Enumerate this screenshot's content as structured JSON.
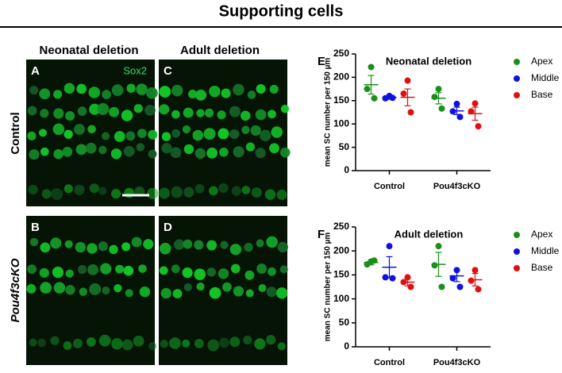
{
  "figure": {
    "title": "Supporting cells",
    "column_titles": [
      "Neonatal deletion",
      "Adult deletion"
    ],
    "row_labels": [
      "Control",
      "Pou4f3cKO"
    ],
    "panels": [
      "A",
      "C",
      "B",
      "D"
    ],
    "stain": "Sox2"
  },
  "chart_data": [
    {
      "type": "dot",
      "panel": "E",
      "title": "Neonatal deletion",
      "y_label": "mean SC number per 150 µm",
      "categories": [
        "Control",
        "Pou4f3cKO"
      ],
      "series": [
        {
          "name": "Apex",
          "color": "#1a8f1a",
          "values": [
            184,
            155
          ],
          "errors": [
            20,
            12
          ],
          "points": [
            [
              222,
              175,
              155
            ],
            [
              175,
              158,
              133
            ]
          ]
        },
        {
          "name": "Middle",
          "color": "#1010e0",
          "values": [
            157,
            128
          ],
          "errors": [
            4,
            8
          ],
          "points": [
            [
              160,
              155,
              156
            ],
            [
              143,
              127,
              115
            ]
          ]
        },
        {
          "name": "Base",
          "color": "#e01010",
          "values": [
            157,
            122
          ],
          "errors": [
            18,
            14
          ],
          "points": [
            [
              193,
              165,
              125
            ],
            [
              144,
              127,
              95
            ]
          ]
        }
      ],
      "ylim": [
        0,
        250
      ],
      "yticks": [
        0,
        50,
        100,
        150,
        200,
        250
      ]
    },
    {
      "type": "dot",
      "panel": "F",
      "title": "Adult deletion",
      "y_label": "mean SC number per 150 µm",
      "categories": [
        "Control",
        "Pou4f3cKO"
      ],
      "series": [
        {
          "name": "Apex",
          "color": "#1a8f1a",
          "values": [
            176,
            172
          ],
          "errors": [
            5,
            25
          ],
          "points": [
            [
              178,
              172,
              180
            ],
            [
              210,
              170,
              125
            ]
          ]
        },
        {
          "name": "Middle",
          "color": "#1010e0",
          "values": [
            166,
            148
          ],
          "errors": [
            22,
            12
          ],
          "points": [
            [
              210,
              145,
              143
            ],
            [
              160,
              143,
              125
            ]
          ]
        },
        {
          "name": "Base",
          "color": "#e01010",
          "values": [
            135,
            140
          ],
          "errors": [
            8,
            13
          ],
          "points": [
            [
              145,
              135,
              125
            ],
            [
              160,
              138,
              120
            ]
          ]
        }
      ],
      "ylim": [
        0,
        250
      ],
      "yticks": [
        0,
        50,
        100,
        150,
        200,
        250
      ]
    }
  ]
}
